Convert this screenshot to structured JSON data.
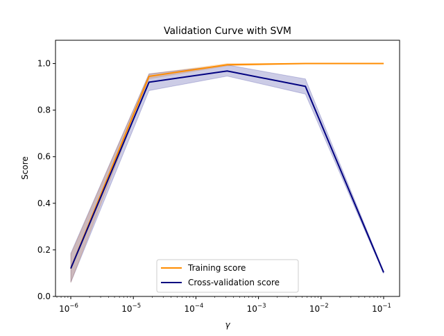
{
  "chart_data": {
    "type": "line",
    "title": "Validation Curve with SVM",
    "xlabel": "γ",
    "ylabel": "Score",
    "xscale": "log",
    "xlim": [
      5.7e-07,
      0.18
    ],
    "ylim": [
      0.0,
      1.1
    ],
    "grid": false,
    "legend_position": "bottom-center",
    "x": [
      1e-06,
      1.78e-05,
      0.000316,
      0.00562,
      0.1
    ],
    "x_tick_labels": [
      "10^-6",
      "10^-5",
      "10^-4",
      "10^-3",
      "10^-2",
      "10^-1"
    ],
    "x_tick_exponents": [
      -6,
      -5,
      -4,
      -3,
      -2,
      -1
    ],
    "y_ticks": [
      0.0,
      0.2,
      0.4,
      0.6,
      0.8,
      1.0
    ],
    "y_tick_labels": [
      "0.0",
      "0.2",
      "0.4",
      "0.6",
      "0.8",
      "1.0"
    ],
    "series": [
      {
        "name": "Training score",
        "color": "#ff8c00",
        "values": [
          0.12,
          0.945,
          0.995,
          1.0,
          1.0
        ],
        "band_low": [
          0.06,
          0.935,
          0.99,
          0.999,
          0.999
        ],
        "band_high": [
          0.18,
          0.955,
          1.0,
          1.0,
          1.0
        ]
      },
      {
        "name": "Cross-validation score",
        "color": "#000080",
        "values": [
          0.12,
          0.92,
          0.968,
          0.902,
          0.103
        ],
        "band_low": [
          0.06,
          0.884,
          0.946,
          0.869,
          0.098
        ],
        "band_high": [
          0.185,
          0.956,
          0.994,
          0.934,
          0.108
        ]
      }
    ]
  }
}
